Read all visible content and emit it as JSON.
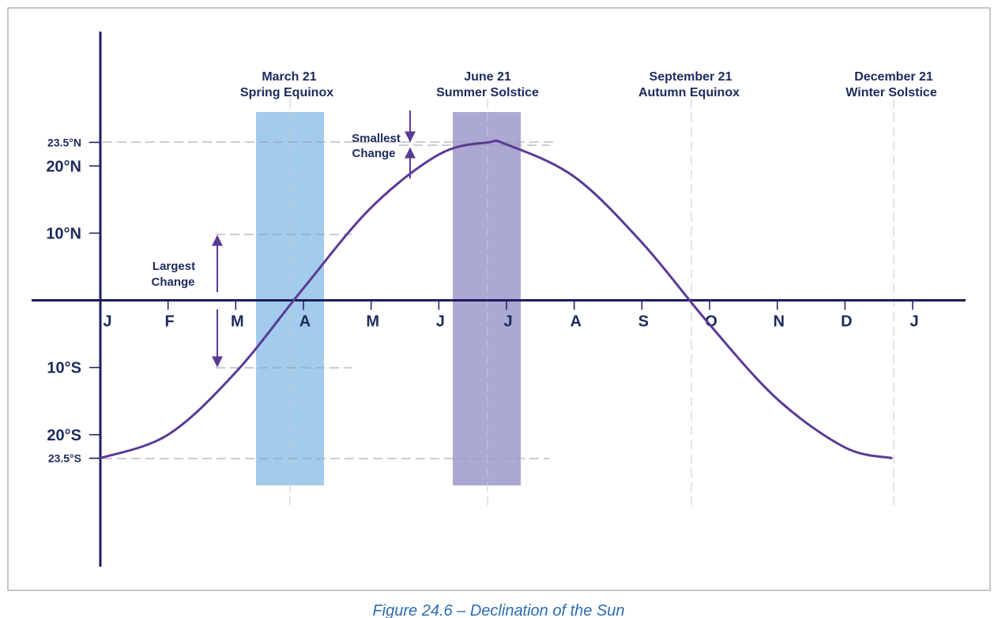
{
  "chart_data": {
    "type": "line",
    "x": [
      0,
      1,
      2,
      3,
      4,
      5,
      5.72,
      6,
      7,
      8,
      9,
      10,
      11,
      11.7
    ],
    "values": [
      -23.5,
      -20.0,
      -10.7,
      1.8,
      13.8,
      21.7,
      23.5,
      23.2,
      18.4,
      8.6,
      -3.6,
      -14.7,
      -21.9,
      -23.5
    ],
    "color": "#5b3a96",
    "xlim": [
      0,
      12
    ],
    "xticks": [
      {
        "value": 0,
        "label": "J"
      },
      {
        "value": 1,
        "label": "F"
      },
      {
        "value": 2,
        "label": "M"
      },
      {
        "value": 3,
        "label": "A"
      },
      {
        "value": 4,
        "label": "M"
      },
      {
        "value": 5,
        "label": "J"
      },
      {
        "value": 6,
        "label": "J"
      },
      {
        "value": 7,
        "label": "A"
      },
      {
        "value": 8,
        "label": "S"
      },
      {
        "value": 9,
        "label": "O"
      },
      {
        "value": 10,
        "label": "N"
      },
      {
        "value": 11,
        "label": "D"
      },
      {
        "value": 12,
        "label": "J"
      }
    ],
    "ylim": [
      -40,
      40
    ],
    "yticks": [
      {
        "value": 23.5,
        "label": "23.5°N"
      },
      {
        "value": 20,
        "label": "20°N"
      },
      {
        "value": 10,
        "label": "10°N"
      },
      {
        "value": -10,
        "label": "10°S"
      },
      {
        "value": -20,
        "label": "20°S"
      },
      {
        "value": -23.5,
        "label": "23.5°S"
      }
    ],
    "annotations": [
      {
        "date": "March 21",
        "event": "Spring Equinox"
      },
      {
        "date": "June 21",
        "event": "Summer Solstice"
      },
      {
        "date": "September 21",
        "event": "Autumn Equinox"
      },
      {
        "date": "December 21",
        "event": "Winter Solstice"
      }
    ],
    "smallest_change": [
      "Smallest",
      "Change"
    ],
    "largest_change": [
      "Largest",
      "Change"
    ],
    "caption": "Figure 24.6 – Declination of the Sun"
  }
}
